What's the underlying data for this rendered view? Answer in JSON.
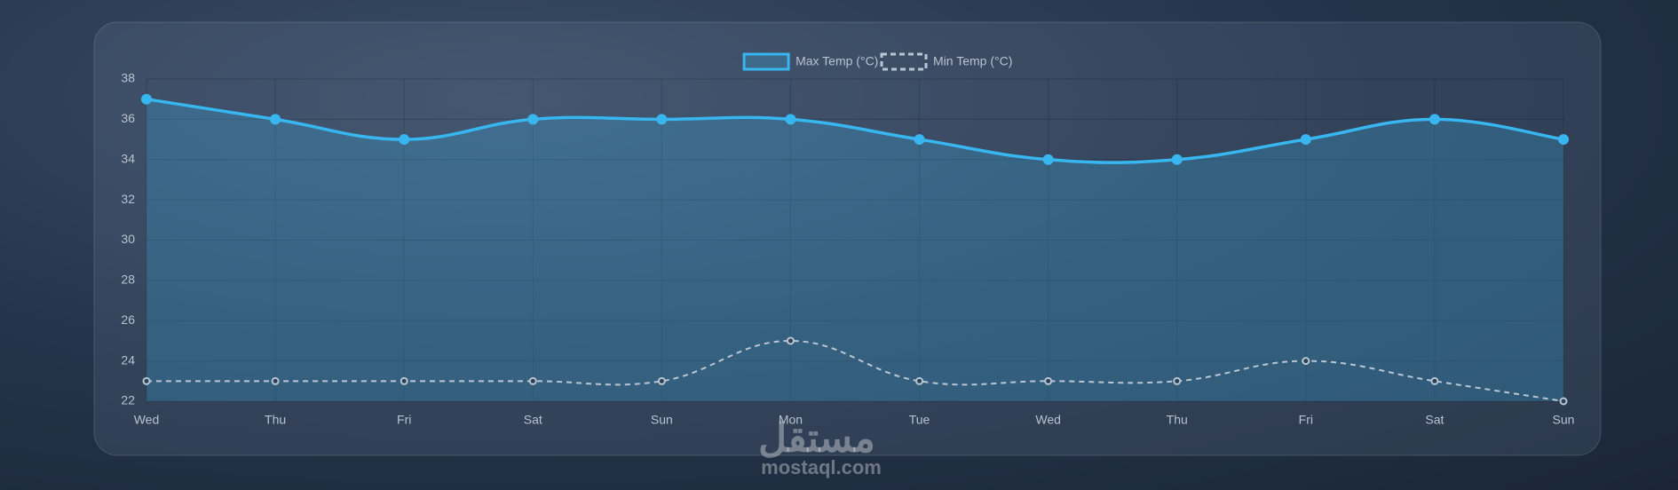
{
  "chart_data": {
    "type": "line",
    "categories": [
      "Wed",
      "Thu",
      "Fri",
      "Sat",
      "Sun",
      "Mon",
      "Tue",
      "Wed",
      "Thu",
      "Fri",
      "Sat",
      "Sun"
    ],
    "series": [
      {
        "name": "Max Temp (°C)",
        "color": "#38b6f0",
        "values": [
          37,
          36,
          35,
          36,
          36,
          36,
          35,
          34,
          34,
          35,
          36,
          35
        ],
        "fill": true,
        "dashed": false
      },
      {
        "name": "Min Temp (°C)",
        "color": "#b9c6d3",
        "values": [
          23,
          23,
          23,
          23,
          23,
          25,
          23,
          23,
          23,
          24,
          23,
          22
        ],
        "fill": false,
        "dashed": true
      }
    ],
    "ylim": [
      22,
      38
    ],
    "yticks": [
      22,
      24,
      26,
      28,
      30,
      32,
      34,
      36,
      38
    ],
    "grid": true,
    "legend": "top"
  },
  "watermark": {
    "arabic": "مستقل",
    "latin": "mostaql.com"
  }
}
